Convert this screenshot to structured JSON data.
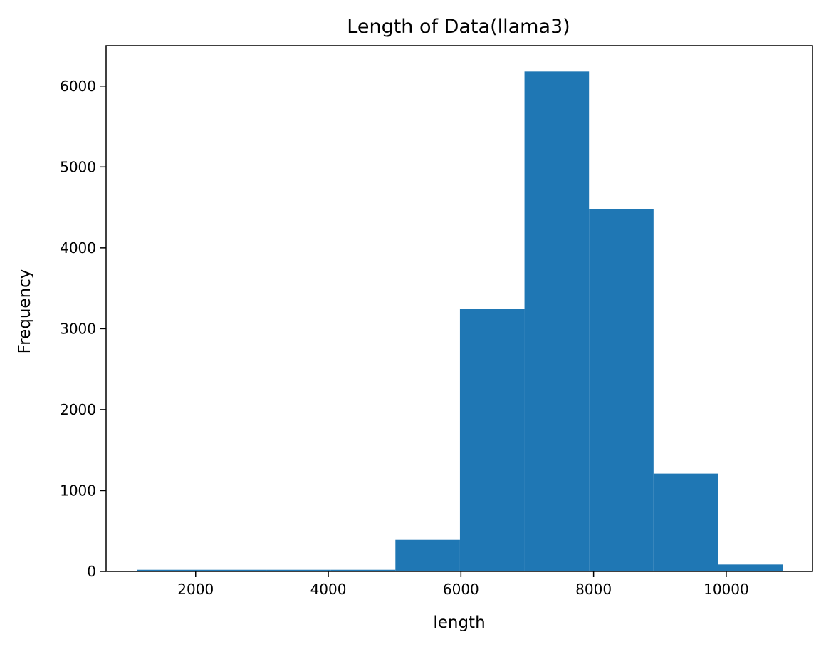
{
  "chart_data": {
    "type": "bar",
    "title": "Length of Data(llama3)",
    "xlabel": "length",
    "ylabel": "Frequency",
    "xlim": [
      650,
      11300
    ],
    "ylim": [
      0,
      6500
    ],
    "x_ticks": [
      2000,
      4000,
      6000,
      8000,
      10000
    ],
    "y_ticks": [
      0,
      1000,
      2000,
      3000,
      4000,
      5000,
      6000
    ],
    "bins": [
      {
        "start": 1120,
        "end": 2093,
        "count": 20
      },
      {
        "start": 2093,
        "end": 3066,
        "count": 20
      },
      {
        "start": 3066,
        "end": 4039,
        "count": 20
      },
      {
        "start": 4039,
        "end": 5012,
        "count": 20
      },
      {
        "start": 5012,
        "end": 5985,
        "count": 390
      },
      {
        "start": 5985,
        "end": 6958,
        "count": 3250
      },
      {
        "start": 6958,
        "end": 7931,
        "count": 6180
      },
      {
        "start": 7931,
        "end": 8904,
        "count": 4480
      },
      {
        "start": 8904,
        "end": 9877,
        "count": 1210
      },
      {
        "start": 9877,
        "end": 10850,
        "count": 85
      }
    ],
    "bar_color": "#1f77b4",
    "grid": false
  }
}
